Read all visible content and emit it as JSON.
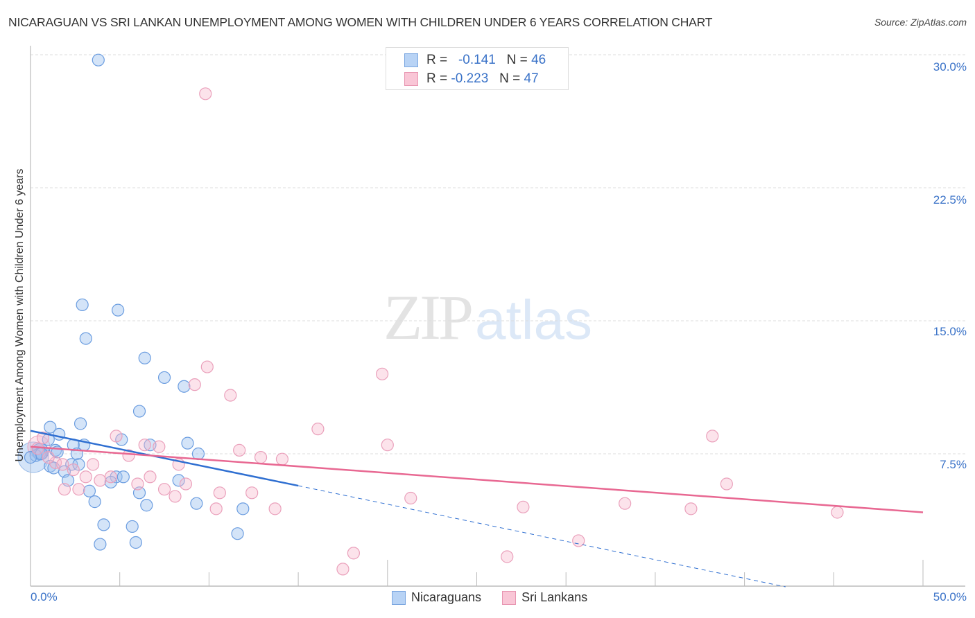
{
  "header": {
    "title": "NICARAGUAN VS SRI LANKAN UNEMPLOYMENT AMONG WOMEN WITH CHILDREN UNDER 6 YEARS CORRELATION CHART",
    "source": "Source: ZipAtlas.com"
  },
  "watermark": {
    "zip": "ZIP",
    "atlas": "atlas"
  },
  "axes": {
    "ylabel": "Unemployment Among Women with Children Under 6 years",
    "y_ticks": [
      "30.0%",
      "22.5%",
      "15.0%",
      "7.5%"
    ],
    "x_min_label": "0.0%",
    "x_max_label": "50.0%"
  },
  "legend": {
    "rows": [
      {
        "r_label": "R =",
        "r_value": "-0.141",
        "n_label": "N =",
        "n_value": "46",
        "color": "#b8d3f5",
        "border": "#7aa6e0"
      },
      {
        "r_label": "R =",
        "r_value": "-0.223",
        "n_label": "N =",
        "n_value": "47",
        "color": "#f9c6d6",
        "border": "#e895b1"
      }
    ],
    "bottom": [
      {
        "label": "Nicaraguans",
        "color": "#b8d3f5",
        "border": "#7aa6e0"
      },
      {
        "label": "Sri Lankans",
        "color": "#f9c6d6",
        "border": "#e895b1"
      }
    ]
  },
  "colors": {
    "blue_fill": "rgba(160,196,240,0.45)",
    "blue_stroke": "#6b9de0",
    "blue_line": "#2f6fd1",
    "pink_fill": "rgba(247,184,206,0.4)",
    "pink_stroke": "#eaa0bb",
    "pink_line": "#e86892",
    "axis_text": "#3b73c8",
    "grid": "#dddddd"
  },
  "chart_data": {
    "type": "scatter",
    "title": "NICARAGUAN VS SRI LANKAN UNEMPLOYMENT AMONG WOMEN WITH CHILDREN UNDER 6 YEARS CORRELATION CHART",
    "xlabel": "",
    "ylabel": "Unemployment Among Women with Children Under 6 years",
    "xlim": [
      0,
      50
    ],
    "ylim": [
      0,
      30
    ],
    "x_ticks": [
      "0.0%",
      "50.0%"
    ],
    "y_ticks": [
      "7.5%",
      "15.0%",
      "22.5%",
      "30.0%"
    ],
    "grid": "horizontal dashed",
    "legend_position": "top-center (stats) and bottom-center (series)",
    "series": [
      {
        "name": "Nicaraguans",
        "R": -0.141,
        "N": 46,
        "points": [
          [
            3.8,
            29.7
          ],
          [
            2.9,
            15.9
          ],
          [
            4.9,
            15.6
          ],
          [
            3.1,
            14.0
          ],
          [
            6.4,
            12.9
          ],
          [
            7.5,
            11.8
          ],
          [
            8.6,
            11.3
          ],
          [
            6.1,
            9.9
          ],
          [
            2.8,
            9.2
          ],
          [
            1.1,
            9.0
          ],
          [
            1.6,
            8.6
          ],
          [
            1.0,
            8.3
          ],
          [
            5.1,
            8.3
          ],
          [
            3.0,
            8.0
          ],
          [
            6.7,
            8.0
          ],
          [
            2.4,
            8.0
          ],
          [
            8.8,
            8.1
          ],
          [
            1.4,
            7.7
          ],
          [
            0.5,
            7.5
          ],
          [
            0.3,
            7.4
          ],
          [
            2.6,
            7.5
          ],
          [
            9.4,
            7.5
          ],
          [
            2.3,
            6.9
          ],
          [
            1.1,
            6.8
          ],
          [
            1.9,
            6.5
          ],
          [
            4.8,
            6.2
          ],
          [
            5.2,
            6.2
          ],
          [
            4.5,
            5.9
          ],
          [
            8.3,
            6.0
          ],
          [
            2.1,
            6.0
          ],
          [
            3.3,
            5.4
          ],
          [
            6.1,
            5.3
          ],
          [
            3.6,
            4.8
          ],
          [
            6.5,
            4.6
          ],
          [
            9.3,
            4.7
          ],
          [
            11.9,
            4.4
          ],
          [
            4.1,
            3.5
          ],
          [
            5.7,
            3.4
          ],
          [
            11.6,
            3.0
          ],
          [
            3.9,
            2.4
          ],
          [
            5.9,
            2.5
          ],
          [
            0.6,
            7.5
          ],
          [
            0.0,
            7.3
          ],
          [
            1.5,
            7.6
          ],
          [
            2.7,
            6.9
          ],
          [
            1.3,
            6.7
          ]
        ],
        "trend": {
          "x": [
            0,
            15,
            42.3
          ],
          "y": [
            8.8,
            5.7,
            0.0
          ],
          "solid_until_x": 15
        }
      },
      {
        "name": "Sri Lankans",
        "R": -0.223,
        "N": 47,
        "points": [
          [
            9.8,
            27.8
          ],
          [
            9.9,
            12.4
          ],
          [
            19.7,
            12.0
          ],
          [
            9.2,
            11.4
          ],
          [
            11.2,
            10.8
          ],
          [
            16.1,
            8.9
          ],
          [
            4.8,
            8.5
          ],
          [
            20.0,
            8.0
          ],
          [
            38.2,
            8.5
          ],
          [
            6.4,
            8.0
          ],
          [
            7.2,
            7.9
          ],
          [
            0.7,
            8.4
          ],
          [
            11.7,
            7.7
          ],
          [
            12.9,
            7.3
          ],
          [
            14.1,
            7.2
          ],
          [
            5.5,
            7.4
          ],
          [
            8.3,
            6.9
          ],
          [
            1.4,
            7.0
          ],
          [
            1.8,
            6.9
          ],
          [
            2.4,
            6.6
          ],
          [
            0.4,
            7.8
          ],
          [
            3.1,
            6.2
          ],
          [
            3.9,
            6.0
          ],
          [
            4.5,
            6.2
          ],
          [
            6.7,
            6.2
          ],
          [
            6.0,
            5.8
          ],
          [
            7.5,
            5.5
          ],
          [
            8.7,
            5.8
          ],
          [
            8.1,
            5.1
          ],
          [
            10.6,
            5.3
          ],
          [
            12.4,
            5.3
          ],
          [
            2.7,
            5.5
          ],
          [
            1.9,
            5.5
          ],
          [
            39.0,
            5.8
          ],
          [
            21.3,
            5.0
          ],
          [
            27.6,
            4.5
          ],
          [
            33.3,
            4.7
          ],
          [
            37.0,
            4.4
          ],
          [
            45.2,
            4.2
          ],
          [
            10.4,
            4.4
          ],
          [
            13.7,
            4.4
          ],
          [
            30.7,
            2.6
          ],
          [
            18.1,
            1.9
          ],
          [
            26.7,
            1.7
          ],
          [
            17.5,
            1.0
          ],
          [
            1.0,
            7.3
          ],
          [
            3.5,
            6.9
          ]
        ],
        "trend": {
          "x": [
            0,
            50
          ],
          "y": [
            7.9,
            4.2
          ]
        }
      }
    ]
  }
}
